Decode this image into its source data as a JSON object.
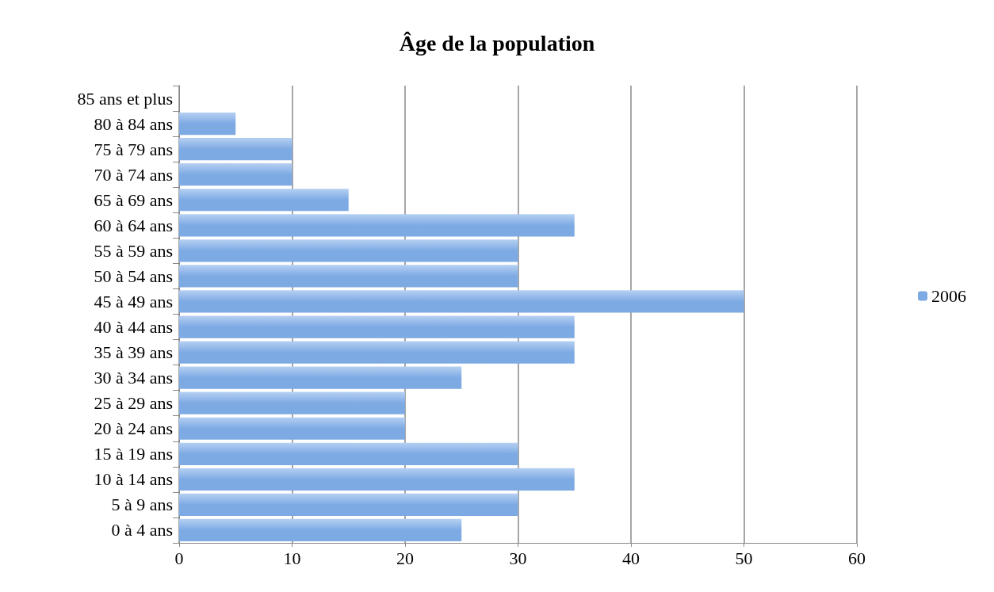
{
  "chart_data": {
    "type": "bar",
    "orientation": "horizontal",
    "title": "Âge de la population",
    "categories": [
      "85 ans et plus",
      "80 à 84 ans",
      "75 à 79 ans",
      "70 à 74 ans",
      "65 à 69 ans",
      "60 à 64 ans",
      "55 à 59 ans",
      "50 à 54 ans",
      "45 à 49 ans",
      "40 à 44 ans",
      "35 à 39 ans",
      "30 à 34 ans",
      "25 à 29 ans",
      "20 à 24 ans",
      "15 à 19 ans",
      "10 à 14 ans",
      "5 à 9 ans",
      "0 à 4 ans"
    ],
    "series": [
      {
        "name": "2006",
        "color": "#7eaae4",
        "values": [
          0,
          5,
          10,
          10,
          15,
          35,
          30,
          30,
          50,
          35,
          35,
          25,
          20,
          20,
          30,
          35,
          30,
          25
        ]
      }
    ],
    "xlim": [
      0,
      60
    ],
    "xticks": [
      0,
      10,
      20,
      30,
      40,
      50,
      60
    ],
    "grid": "x",
    "legend": "right"
  }
}
